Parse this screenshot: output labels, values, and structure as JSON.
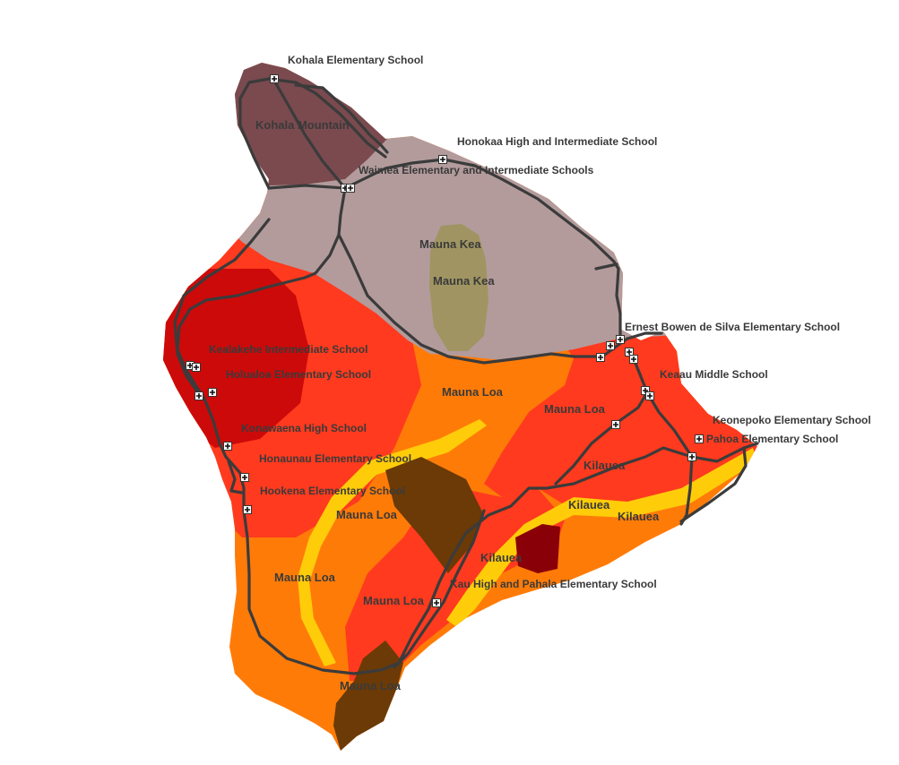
{
  "zones": {
    "kohala": {
      "color": "#7a4a4f"
    },
    "maunakea_flank": {
      "color": "#b39b9c"
    },
    "maunakea_summit": {
      "color": "#a09562"
    },
    "zone_red": {
      "color": "#ff3a1e"
    },
    "zone_darkred": {
      "color": "#cc0a0a"
    },
    "zone_orange": {
      "color": "#ff7b08"
    },
    "zone_yellow": {
      "color": "#ffcc0a"
    },
    "zone_brown": {
      "color": "#6b3a06"
    },
    "zone_maroon": {
      "color": "#8a0008"
    }
  },
  "region_labels": [
    {
      "id": "kohala-mountain",
      "text": "Kohala Mountain"
    },
    {
      "id": "mauna-kea-1",
      "text": "Mauna Kea"
    },
    {
      "id": "mauna-kea-2",
      "text": "Mauna Kea"
    },
    {
      "id": "mauna-loa-1",
      "text": "Mauna Loa"
    },
    {
      "id": "mauna-loa-2",
      "text": "Mauna Loa"
    },
    {
      "id": "mauna-loa-3",
      "text": "Mauna Loa"
    },
    {
      "id": "mauna-loa-4",
      "text": "Mauna Loa"
    },
    {
      "id": "mauna-loa-5",
      "text": "Mauna Loa"
    },
    {
      "id": "mauna-loa-6",
      "text": "Mauna Loa"
    },
    {
      "id": "kilauea-1",
      "text": "Kilauea"
    },
    {
      "id": "kilauea-2",
      "text": "Kilauea"
    },
    {
      "id": "kilauea-3",
      "text": "Kilauea"
    },
    {
      "id": "kilauea-4",
      "text": "Kilauea"
    }
  ],
  "schools": [
    {
      "id": "kohala",
      "name": "Kohala Elementary School"
    },
    {
      "id": "honokaa",
      "name": "Honokaa High and Intermediate School"
    },
    {
      "id": "waimea",
      "name": "Waimea Elementary and Intermediate Schools"
    },
    {
      "id": "ernest-bowen",
      "name": "Ernest Bowen de Silva Elementary School"
    },
    {
      "id": "keaau",
      "name": "Keaau Middle School"
    },
    {
      "id": "keonepoko",
      "name": "Keonepoko Elementary School"
    },
    {
      "id": "pahoa",
      "name": "Pahoa Elementary School"
    },
    {
      "id": "kealakehe",
      "name": "Kealakehe Intermediate School"
    },
    {
      "id": "holualoa",
      "name": "Holualoa Elementary School"
    },
    {
      "id": "konawaena",
      "name": "Konawaena High School"
    },
    {
      "id": "honaunau",
      "name": "Honaunau Elementary School"
    },
    {
      "id": "hookena",
      "name": "Hookena Elementary School"
    },
    {
      "id": "kau",
      "name": "Kau High and Pahala Elementary School"
    }
  ],
  "icons": {
    "school_marker": "school-cross-icon"
  }
}
